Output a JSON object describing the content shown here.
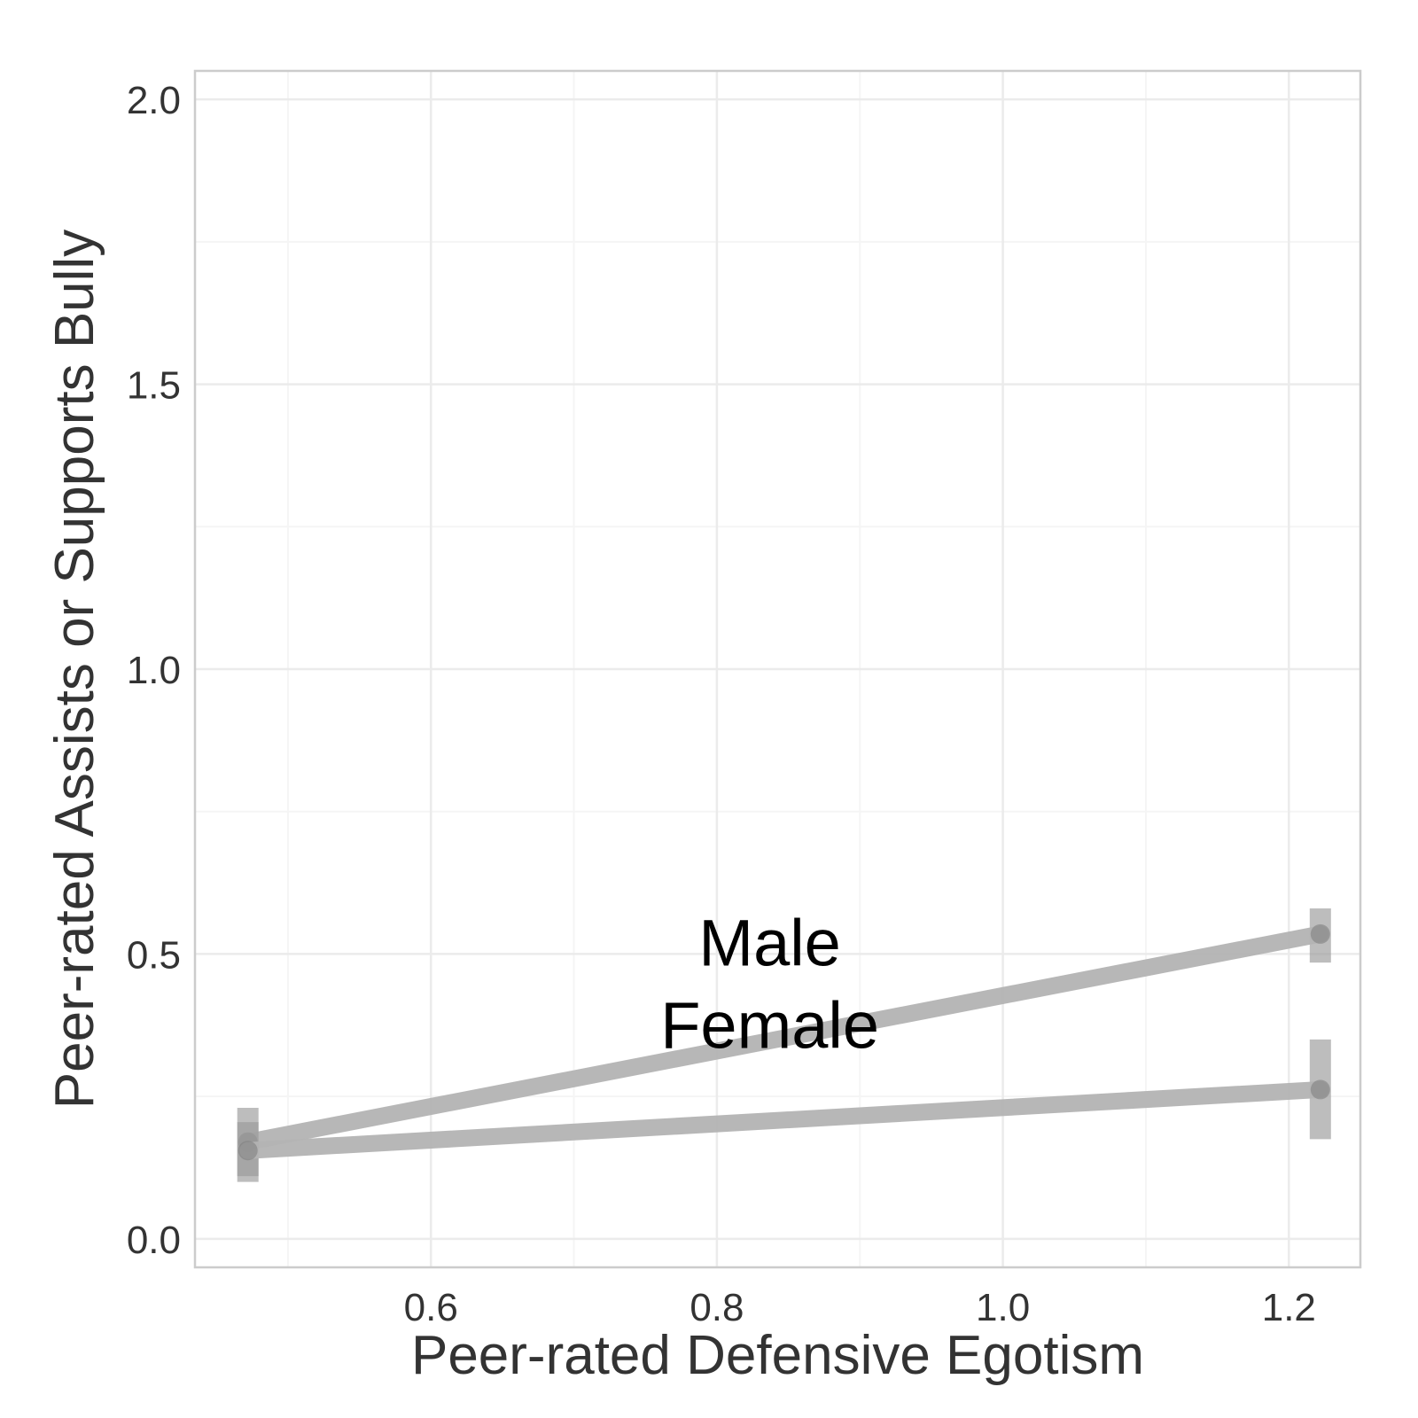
{
  "chart_data": {
    "type": "line",
    "title": "",
    "xlabel": "Peer-rated Defensive Egotism",
    "ylabel": "Peer-rated Assists or Supports Bully",
    "xlim": [
      0.435,
      1.25
    ],
    "ylim": [
      -0.05,
      2.05
    ],
    "x_ticks": [
      0.6,
      0.8,
      1.0,
      1.2
    ],
    "x_tick_labels": [
      "0.6",
      "0.8",
      "1.0",
      "1.2"
    ],
    "y_ticks": [
      0.0,
      0.5,
      1.0,
      1.5,
      2.0
    ],
    "y_tick_labels": [
      "0.0",
      "0.5",
      "1.0",
      "1.5",
      "2.0"
    ],
    "grid": true,
    "legend": "none",
    "series": [
      {
        "name": "Male",
        "x": [
          0.472,
          1.222
        ],
        "y": [
          0.17,
          0.535
        ],
        "error_low": [
          0.11,
          0.485
        ],
        "error_high": [
          0.23,
          0.58
        ]
      },
      {
        "name": "Female",
        "x": [
          0.472,
          1.222
        ],
        "y": [
          0.155,
          0.262
        ],
        "error_low": [
          0.1,
          0.175
        ],
        "error_high": [
          0.205,
          0.35
        ]
      }
    ],
    "annotations": [
      {
        "text": "Male",
        "x": 0.837,
        "y": 0.48
      },
      {
        "text": "Female",
        "x": 0.837,
        "y": 0.335
      }
    ],
    "colors": {
      "line": "#b3b3b3",
      "marker": "#808080",
      "errorbar": "#999999",
      "grid": "#ebebeb",
      "panel_border": "#cccccc"
    }
  }
}
